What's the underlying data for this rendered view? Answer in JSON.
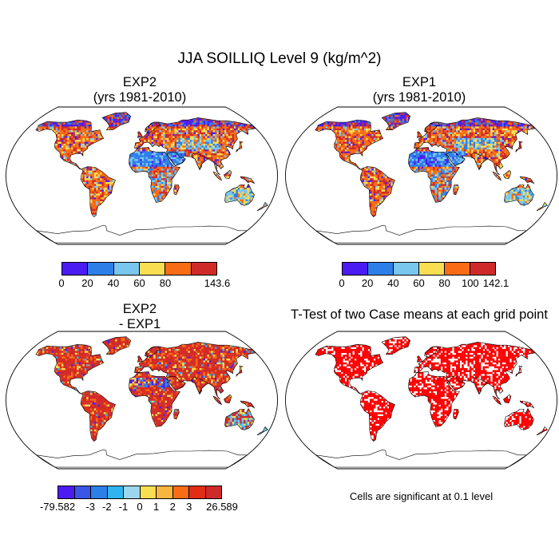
{
  "title": "JJA SOILLIQ Level 9 (kg/m^2)",
  "panels": [
    {
      "id": "exp2",
      "title_line1": "EXP2",
      "title_line2": "(yrs 1981-2010)",
      "colorbar": {
        "colors": [
          "#4b1cf2",
          "#2d7fe8",
          "#79c6ee",
          "#f9de52",
          "#f76c14",
          "#cf2a2a"
        ],
        "labels": [
          "0",
          "20",
          "40",
          "60",
          "80",
          "143.6"
        ]
      }
    },
    {
      "id": "exp1",
      "title_line1": "EXP1",
      "title_line2": "(yrs 1981-2010)",
      "colorbar": {
        "colors": [
          "#4b1cf2",
          "#2d7fe8",
          "#79c6ee",
          "#f9de52",
          "#f76c14",
          "#cf2a2a"
        ],
        "labels": [
          "0",
          "20",
          "40",
          "60",
          "80",
          "100",
          "142.1"
        ]
      }
    },
    {
      "id": "diff",
      "title_line1": "EXP2",
      "title_line2": "- EXP1",
      "colorbar": {
        "colors": [
          "#4b1cf2",
          "#3a56e6",
          "#2d7fe8",
          "#2fb4ef",
          "#9cd6ee",
          "#f9de52",
          "#f7b640",
          "#f76c14",
          "#e22d16",
          "#cf2a2a"
        ],
        "labels": [
          "-79.582",
          "-3",
          "-2",
          "-1",
          "0",
          "1",
          "2",
          "3",
          "26.589"
        ]
      }
    },
    {
      "id": "ttest",
      "title_line1": "T-Test of two Case means at each grid point",
      "note": "Cells are significant at 0.1 level",
      "color": "#ff0000"
    }
  ]
}
